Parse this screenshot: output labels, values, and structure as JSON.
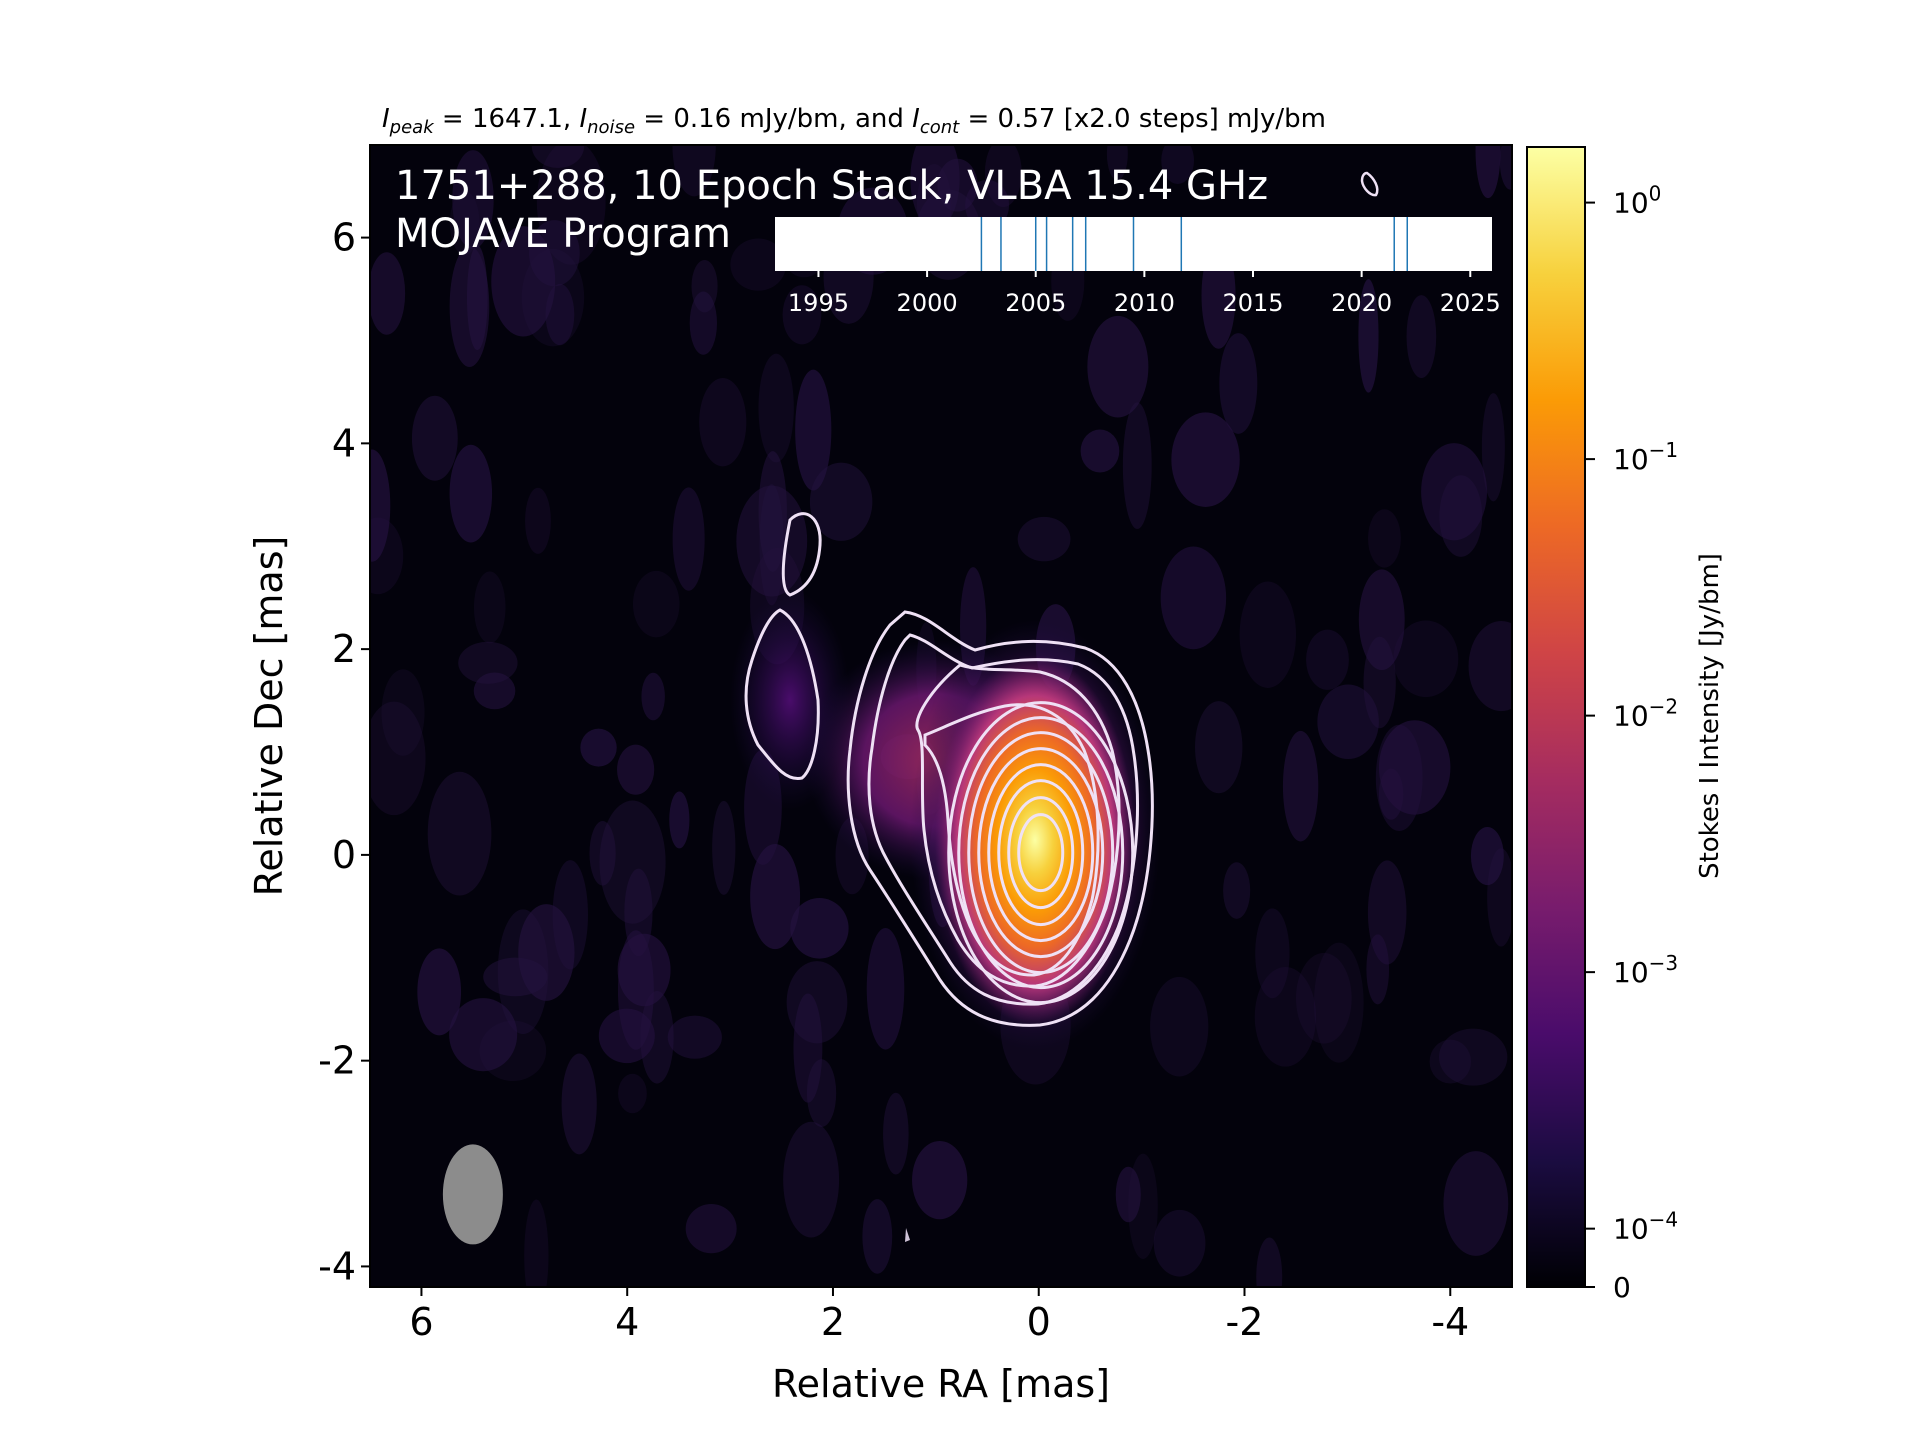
{
  "chart_data": {
    "type": "heatmap",
    "title_parts": {
      "peak_sub": "peak",
      "peak_val": " = 1647.1, ",
      "noise_sub": "noise",
      "noise_val": " = 0.16 mJy/bm, and ",
      "cont_sub": "cont",
      "cont_val": " = 0.57 [x2.0 steps] mJy/bm",
      "symbol": "I"
    },
    "annotation": {
      "line1": "1751+288, 10 Epoch Stack, VLBA 15.4 GHz",
      "line2": "MOJAVE Program"
    },
    "xlabel": "Relative RA [mas]",
    "ylabel": "Relative Dec [mas]",
    "xlim": [
      6.5,
      -4.6
    ],
    "ylim": [
      -4.2,
      6.9
    ],
    "x_ticks": [
      6,
      4,
      2,
      0,
      -2,
      -4
    ],
    "y_ticks": [
      6,
      4,
      2,
      0,
      -2,
      -4
    ],
    "x_tick_labels": [
      "6",
      "4",
      "2",
      "0",
      "-2",
      "-4"
    ],
    "y_tick_labels": [
      "6",
      "4",
      "2",
      "0",
      "-2",
      "-4"
    ],
    "core": {
      "ra": 0.0,
      "dec": 0.1,
      "peak_jy": 1.6471
    },
    "beam": {
      "ra": 5.5,
      "dec": -3.3
    },
    "contour_levels_mjy": [
      0.57,
      1.14,
      2.28,
      4.56,
      9.12,
      18.24,
      36.48,
      72.96,
      145.92,
      291.84,
      583.68,
      1167.36
    ],
    "colorbar": {
      "label": "Stokes I Intensity [Jy/bm]",
      "scale": "log",
      "ticks": [
        {
          "value": 1,
          "base": "10",
          "exp": "0"
        },
        {
          "value": 0.1,
          "base": "10",
          "exp": "−1"
        },
        {
          "value": 0.01,
          "base": "10",
          "exp": "−2"
        },
        {
          "value": 0.001,
          "base": "10",
          "exp": "−3"
        },
        {
          "value": 0.0001,
          "base": "10",
          "exp": "−4"
        }
      ],
      "zero_label": "0",
      "colors": [
        "#000004",
        "#1b0c41",
        "#4a0c6b",
        "#781c6d",
        "#a52c60",
        "#cf4446",
        "#ed6925",
        "#fb9b06",
        "#f7d13d",
        "#fcffa4"
      ]
    },
    "epoch_inset": {
      "xlim": [
        1993,
        2026
      ],
      "ticks": [
        1995,
        2000,
        2005,
        2010,
        2015,
        2020,
        2025
      ],
      "tick_labels": [
        "1995",
        "2000",
        "2005",
        "2010",
        "2015",
        "2020",
        "2025"
      ],
      "epochs": [
        2002.5,
        2003.4,
        2005.0,
        2005.5,
        2006.7,
        2007.3,
        2009.5,
        2011.7,
        2021.5,
        2022.1
      ],
      "epoch_color": "#1f77b4"
    }
  }
}
